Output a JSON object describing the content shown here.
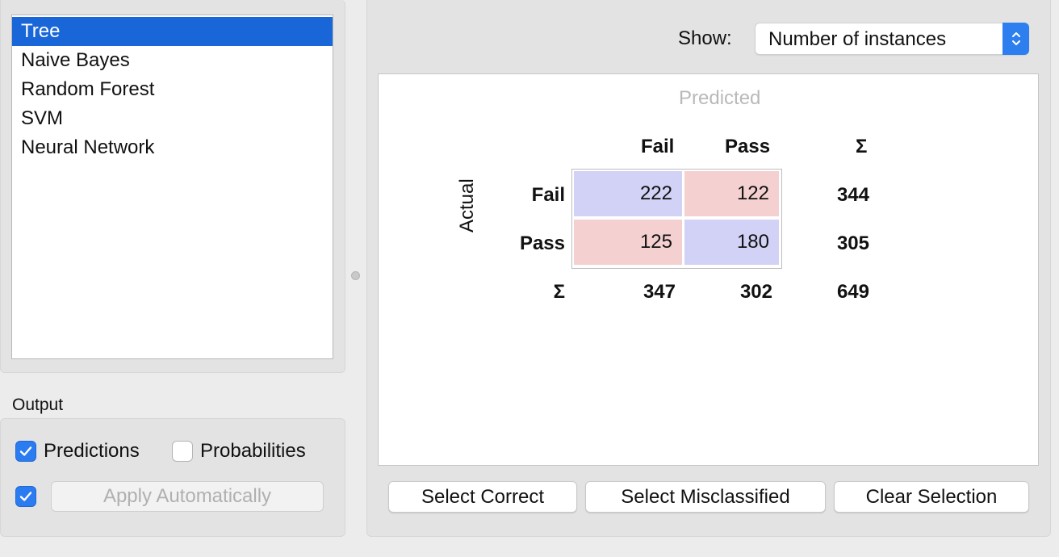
{
  "learners": {
    "items": [
      "Tree",
      "Naive Bayes",
      "Random Forest",
      "SVM",
      "Neural Network"
    ],
    "selected_index": 0
  },
  "output": {
    "section_label": "Output",
    "predictions": {
      "label": "Predictions",
      "checked": true
    },
    "probabilities": {
      "label": "Probabilities",
      "checked": false
    },
    "auto_apply": {
      "checked": true
    },
    "apply_button": "Apply Automatically"
  },
  "show": {
    "label": "Show:",
    "selected": "Number of instances"
  },
  "matrix": {
    "predicted_label": "Predicted",
    "actual_label": "Actual",
    "col_headers": [
      "Fail",
      "Pass"
    ],
    "row_headers": [
      "Fail",
      "Pass"
    ],
    "sum_symbol": "Σ",
    "cells": [
      [
        "222",
        "122"
      ],
      [
        "125",
        "180"
      ]
    ],
    "row_sums": [
      "344",
      "305"
    ],
    "col_sums": [
      "347",
      "302"
    ],
    "total": "649"
  },
  "buttons": {
    "select_correct": "Select Correct",
    "select_misclassified": "Select Misclassified",
    "clear_selection": "Clear Selection"
  },
  "colors": {
    "selection": "#1866d8",
    "accent": "#2b7cf0",
    "correct_cell": "#d2d1f6",
    "misclassified_cell": "#f4d0d1"
  }
}
